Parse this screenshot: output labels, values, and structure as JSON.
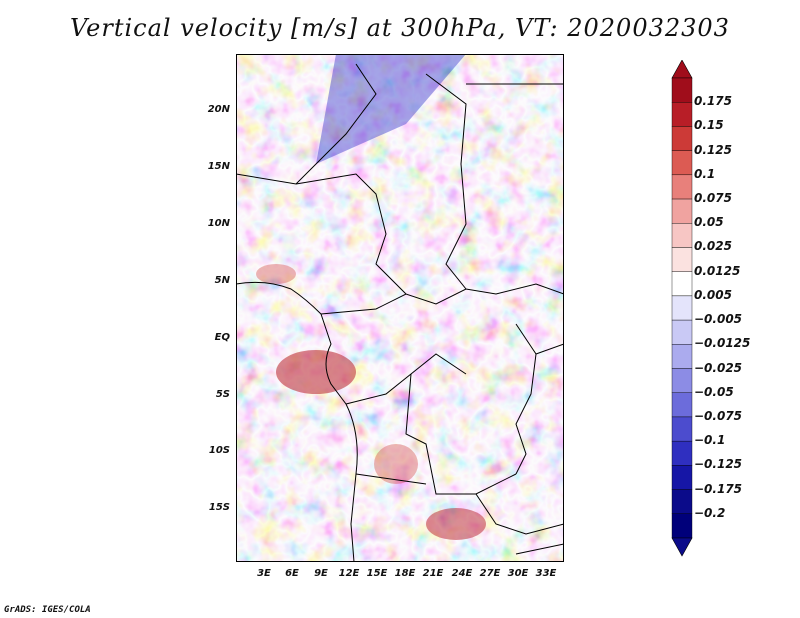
{
  "title": "Vertical velocity [m/s] at 300hPa, VT: 2020032303",
  "credit": "GrADS: IGES/COLA",
  "map": {
    "lat_ticks": [
      "20N",
      "15N",
      "10N",
      "5N",
      "EQ",
      "5S",
      "10S",
      "15S"
    ],
    "lon_ticks": [
      "3E",
      "6E",
      "9E",
      "12E",
      "15E",
      "18E",
      "21E",
      "24E",
      "27E",
      "30E",
      "33E"
    ]
  },
  "colorbar": {
    "labels": [
      "0.175",
      "0.15",
      "0.125",
      "0.1",
      "0.075",
      "0.05",
      "0.025",
      "0.0125",
      "0.005",
      "−0.005",
      "−0.0125",
      "−0.025",
      "−0.05",
      "−0.075",
      "−0.1",
      "−0.125",
      "−0.175",
      "−0.2"
    ],
    "colors": [
      "#a00d1b",
      "#b81e27",
      "#cc3a37",
      "#dc5b53",
      "#e8807b",
      "#f0a3a0",
      "#f7c6c4",
      "#fbe2e0",
      "#ffffff",
      "#e4e4fb",
      "#c9c9f5",
      "#ababee",
      "#8c8ce5",
      "#6c6cdb",
      "#4c4cce",
      "#2f2fc0",
      "#1616a6",
      "#0b0b8a",
      "#00007a",
      "#8b0a17"
    ]
  }
}
